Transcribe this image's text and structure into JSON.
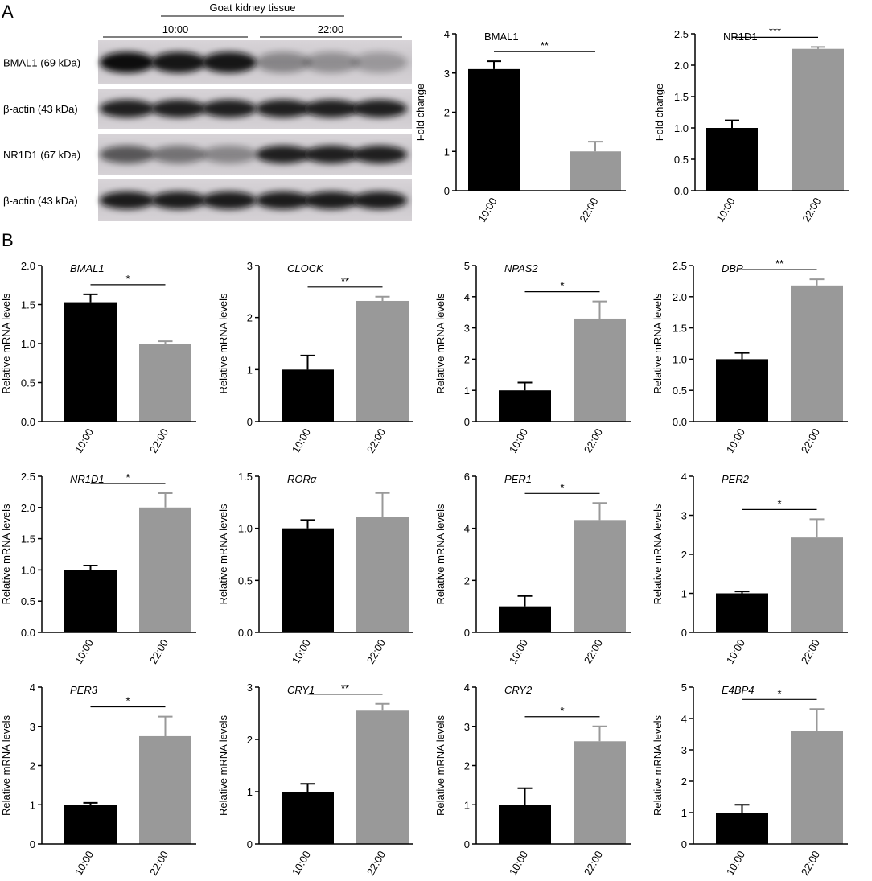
{
  "panels": [
    "A",
    "B"
  ],
  "blot": {
    "group": "Goat kidney tissue",
    "times": [
      "10:00",
      "22:00"
    ],
    "rows": [
      "BMAL1 (69 kDa)",
      "β-actin (43 kDa)",
      "NR1D1 (67 kDa)",
      "β-actin (43 kDa)"
    ]
  },
  "chart_data": [
    {
      "type": "bar",
      "title": "BMAL1",
      "ylabel": "Fold change",
      "categories": [
        "10:00",
        "22:00"
      ],
      "values": [
        3.1,
        1.0
      ],
      "errors": [
        0.2,
        0.25
      ],
      "colors": [
        "#000000",
        "#999999"
      ],
      "ylim": [
        0,
        4
      ],
      "yticks": [
        0,
        1,
        2,
        3,
        4
      ],
      "significance": "**"
    },
    {
      "type": "bar",
      "title": "NR1D1",
      "ylabel": "Fold change",
      "categories": [
        "10:00",
        "22:00"
      ],
      "values": [
        1.0,
        2.26
      ],
      "errors": [
        0.12,
        0.03
      ],
      "colors": [
        "#000000",
        "#999999"
      ],
      "ylim": [
        0,
        2.5
      ],
      "yticks": [
        {
          "value": 0,
          "label": "0.0"
        },
        0.5,
        {
          "value": 1,
          "label": "1.0"
        },
        1.5,
        {
          "value": 2,
          "label": "2.0"
        },
        2.5
      ],
      "significance": "***"
    },
    {
      "type": "bar",
      "title": "BMAL1",
      "ylabel": "Relative mRNA levels",
      "categories": [
        "10:00",
        "22:00"
      ],
      "values": [
        1.53,
        1.0
      ],
      "errors": [
        0.1,
        0.03
      ],
      "colors": [
        "#000000",
        "#999999"
      ],
      "ylim": [
        0,
        2
      ],
      "yticks": [
        {
          "value": 0,
          "label": "0.0"
        },
        0.5,
        {
          "value": 1,
          "label": "1.0"
        },
        1.5,
        {
          "value": 2,
          "label": "2.0"
        }
      ],
      "significance": "*"
    },
    {
      "type": "bar",
      "title": "CLOCK",
      "ylabel": "Relative mRNA levels",
      "categories": [
        "10:00",
        "22:00"
      ],
      "values": [
        1.0,
        2.32
      ],
      "errors": [
        0.27,
        0.08
      ],
      "colors": [
        "#000000",
        "#999999"
      ],
      "ylim": [
        0,
        3
      ],
      "yticks": [
        0,
        1,
        2,
        3
      ],
      "significance": "**"
    },
    {
      "type": "bar",
      "title": "NPAS2",
      "ylabel": "Relative mRNA levels",
      "categories": [
        "10:00",
        "22:00"
      ],
      "values": [
        1.0,
        3.3
      ],
      "errors": [
        0.25,
        0.55
      ],
      "colors": [
        "#000000",
        "#999999"
      ],
      "ylim": [
        0,
        5
      ],
      "yticks": [
        0,
        1,
        2,
        3,
        4,
        5
      ],
      "significance": "*"
    },
    {
      "type": "bar",
      "title": "DBP",
      "ylabel": "Relative mRNA levels",
      "categories": [
        "10:00",
        "22:00"
      ],
      "values": [
        1.0,
        2.18
      ],
      "errors": [
        0.1,
        0.1
      ],
      "colors": [
        "#000000",
        "#999999"
      ],
      "ylim": [
        0,
        2.5
      ],
      "yticks": [
        {
          "value": 0,
          "label": "0.0"
        },
        0.5,
        {
          "value": 1,
          "label": "1.0"
        },
        1.5,
        {
          "value": 2,
          "label": "2.0"
        },
        2.5
      ],
      "significance": "**"
    },
    {
      "type": "bar",
      "title": "NR1D1",
      "ylabel": "Relative mRNA levels",
      "categories": [
        "10:00",
        "22:00"
      ],
      "values": [
        1.0,
        2.0
      ],
      "errors": [
        0.07,
        0.23
      ],
      "colors": [
        "#000000",
        "#999999"
      ],
      "ylim": [
        0,
        2.5
      ],
      "yticks": [
        {
          "value": 0,
          "label": "0.0"
        },
        0.5,
        {
          "value": 1,
          "label": "1.0"
        },
        1.5,
        {
          "value": 2,
          "label": "2.0"
        },
        2.5
      ],
      "significance": "*"
    },
    {
      "type": "bar",
      "title": "RORα",
      "ylabel": "Relative mRNA levels",
      "categories": [
        "10:00",
        "22:00"
      ],
      "values": [
        1.0,
        1.11
      ],
      "errors": [
        0.08,
        0.23
      ],
      "colors": [
        "#000000",
        "#999999"
      ],
      "ylim": [
        0,
        1.5
      ],
      "yticks": [
        {
          "value": 0,
          "label": "0.0"
        },
        0.5,
        {
          "value": 1,
          "label": "1.0"
        },
        1.5
      ]
    },
    {
      "type": "bar",
      "title": "PER1",
      "ylabel": "Relative mRNA levels",
      "categories": [
        "10:00",
        "22:00"
      ],
      "values": [
        1.0,
        4.32
      ],
      "errors": [
        0.4,
        0.65
      ],
      "colors": [
        "#000000",
        "#999999"
      ],
      "ylim": [
        0,
        6
      ],
      "yticks": [
        0,
        2,
        4,
        6
      ],
      "significance": "*"
    },
    {
      "type": "bar",
      "title": "PER2",
      "ylabel": "Relative mRNA levels",
      "categories": [
        "10:00",
        "22:00"
      ],
      "values": [
        1.0,
        2.43
      ],
      "errors": [
        0.05,
        0.47
      ],
      "colors": [
        "#000000",
        "#999999"
      ],
      "ylim": [
        0,
        4
      ],
      "yticks": [
        0,
        1,
        2,
        3,
        4
      ],
      "significance": "*"
    },
    {
      "type": "bar",
      "title": "PER3",
      "ylabel": "Relative mRNA levels",
      "categories": [
        "10:00",
        "22:00"
      ],
      "values": [
        1.0,
        2.75
      ],
      "errors": [
        0.05,
        0.5
      ],
      "colors": [
        "#000000",
        "#999999"
      ],
      "ylim": [
        0,
        4
      ],
      "yticks": [
        0,
        1,
        2,
        3,
        4
      ],
      "significance": "*"
    },
    {
      "type": "bar",
      "title": "CRY1",
      "ylabel": "Relative mRNA levels",
      "categories": [
        "10:00",
        "22:00"
      ],
      "values": [
        1.0,
        2.55
      ],
      "errors": [
        0.15,
        0.13
      ],
      "colors": [
        "#000000",
        "#999999"
      ],
      "ylim": [
        0,
        3
      ],
      "yticks": [
        0,
        1,
        2,
        3
      ],
      "significance": "**"
    },
    {
      "type": "bar",
      "title": "CRY2",
      "ylabel": "Relative mRNA levels",
      "categories": [
        "10:00",
        "22:00"
      ],
      "values": [
        1.0,
        2.62
      ],
      "errors": [
        0.42,
        0.38
      ],
      "colors": [
        "#000000",
        "#999999"
      ],
      "ylim": [
        0,
        4
      ],
      "yticks": [
        0,
        1,
        2,
        3,
        4
      ],
      "significance": "*"
    },
    {
      "type": "bar",
      "title": "E4BP4",
      "ylabel": "Relative mRNA levels",
      "categories": [
        "10:00",
        "22:00"
      ],
      "values": [
        1.0,
        3.6
      ],
      "errors": [
        0.25,
        0.7
      ],
      "colors": [
        "#000000",
        "#999999"
      ],
      "ylim": [
        0,
        5
      ],
      "yticks": [
        0,
        1,
        2,
        3,
        4,
        5
      ],
      "significance": "*"
    }
  ]
}
